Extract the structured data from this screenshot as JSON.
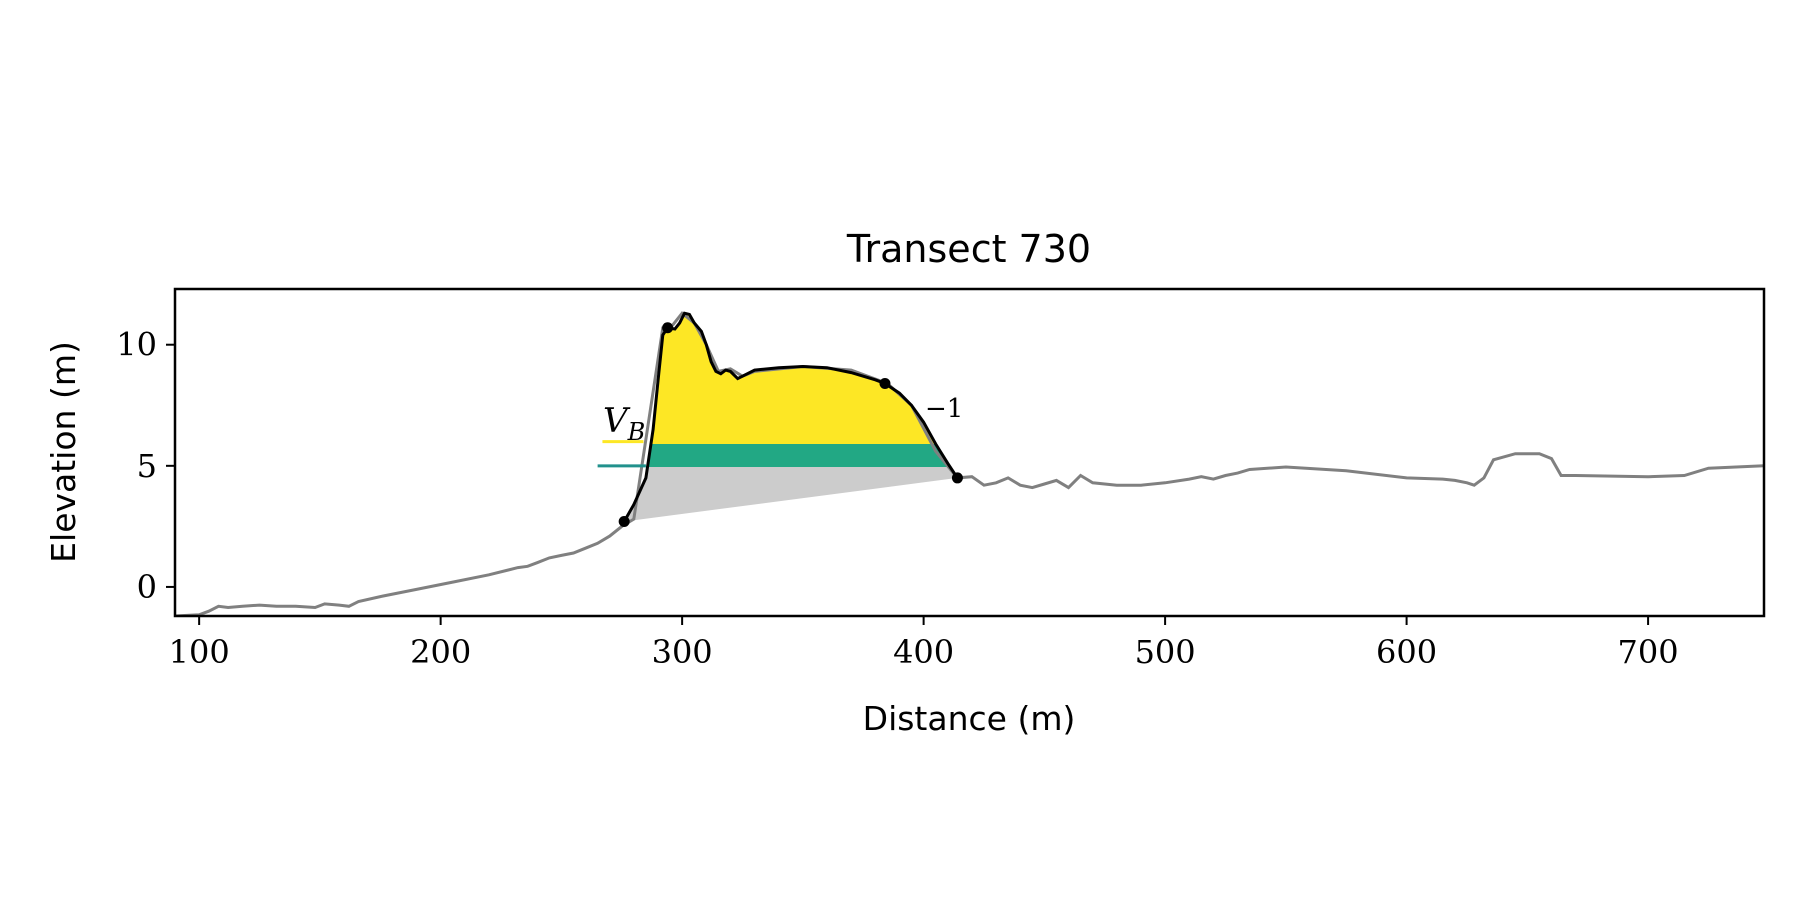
{
  "colors": {
    "profile": "#808080",
    "dune_outline": "#000000",
    "volume_above": "#fde725",
    "volume_band": "#22a884",
    "volume_band_line": "#21918c",
    "volume_below": "#cccccc"
  },
  "chart_data": {
    "type": "line",
    "title": "Transect 730",
    "xlabel": "Distance (m)",
    "ylabel": "Elevation (m)",
    "xlim": [
      90,
      748
    ],
    "ylim": [
      -1.2,
      12.3
    ],
    "xticks": [
      100,
      200,
      300,
      400,
      500,
      600,
      700
    ],
    "yticks": [
      0,
      5,
      10
    ],
    "xtick_labels": [
      "100",
      "200",
      "300",
      "400",
      "500",
      "600",
      "700"
    ],
    "ytick_labels": [
      "0",
      "5",
      "10"
    ],
    "grid": false,
    "legend": "none",
    "annotations": {
      "volume_label": "V_B",
      "exponent_label": "−1"
    },
    "profile": {
      "x": [
        90,
        100,
        104,
        108,
        112,
        118,
        125,
        132,
        140,
        148,
        152,
        158,
        162,
        166,
        175,
        190,
        205,
        220,
        228,
        232,
        236,
        240,
        245,
        250,
        255,
        260,
        265,
        270,
        275,
        280,
        292,
        296,
        300,
        305,
        310,
        315,
        320,
        325,
        330,
        350,
        370,
        385,
        395,
        405,
        414,
        420,
        425,
        430,
        435,
        440,
        445,
        450,
        455,
        460,
        465,
        470,
        480,
        490,
        500,
        510,
        515,
        520,
        525,
        530,
        535,
        550,
        575,
        600,
        615,
        620,
        625,
        628,
        632,
        636,
        645,
        655,
        660,
        664,
        670,
        700,
        715,
        725,
        748
      ],
      "y": [
        -1.2,
        -1.15,
        -1.0,
        -0.8,
        -0.85,
        -0.8,
        -0.75,
        -0.8,
        -0.8,
        -0.85,
        -0.7,
        -0.75,
        -0.8,
        -0.6,
        -0.4,
        -0.1,
        0.2,
        0.5,
        0.7,
        0.8,
        0.85,
        1.0,
        1.2,
        1.3,
        1.4,
        1.6,
        1.8,
        2.1,
        2.5,
        2.8,
        10.7,
        10.8,
        11.3,
        10.9,
        10.0,
        8.9,
        9.0,
        8.7,
        8.9,
        9.1,
        8.95,
        8.4,
        7.5,
        5.6,
        4.5,
        4.55,
        4.2,
        4.3,
        4.5,
        4.2,
        4.1,
        4.25,
        4.4,
        4.1,
        4.6,
        4.3,
        4.2,
        4.2,
        4.3,
        4.45,
        4.55,
        4.45,
        4.6,
        4.7,
        4.85,
        4.95,
        4.8,
        4.5,
        4.45,
        4.4,
        4.3,
        4.2,
        4.5,
        5.25,
        5.5,
        5.5,
        5.3,
        4.6,
        4.6,
        4.55,
        4.6,
        4.9,
        5.0
      ]
    },
    "dune_outline": {
      "x": [
        276,
        280,
        285,
        288,
        290,
        292,
        294,
        297,
        299,
        301,
        303,
        305,
        308,
        310,
        312,
        314,
        316,
        318,
        320,
        323,
        325,
        330,
        340,
        350,
        360,
        370,
        380,
        384,
        390,
        395,
        400,
        405,
        410,
        414
      ],
      "y": [
        2.7,
        3.4,
        4.5,
        6.5,
        8.5,
        10.4,
        10.7,
        10.65,
        10.9,
        11.3,
        11.25,
        10.9,
        10.55,
        10.0,
        9.3,
        8.9,
        8.8,
        8.95,
        8.9,
        8.6,
        8.7,
        8.95,
        9.05,
        9.1,
        9.05,
        8.85,
        8.55,
        8.4,
        8.0,
        7.5,
        6.8,
        5.9,
        5.1,
        4.5
      ]
    },
    "points": {
      "x": [
        276,
        294,
        384,
        414
      ],
      "y": [
        2.7,
        10.7,
        8.4,
        4.5
      ]
    },
    "levels": {
      "volume_top": 5.9,
      "band_bottom": 4.95
    },
    "legend_entries_short": {
      "yellow_line": {
        "x": [
          267,
          284
        ],
        "y": 6.0
      },
      "teal_line": {
        "x": [
          265,
          285
        ],
        "y": 5.0
      }
    }
  }
}
